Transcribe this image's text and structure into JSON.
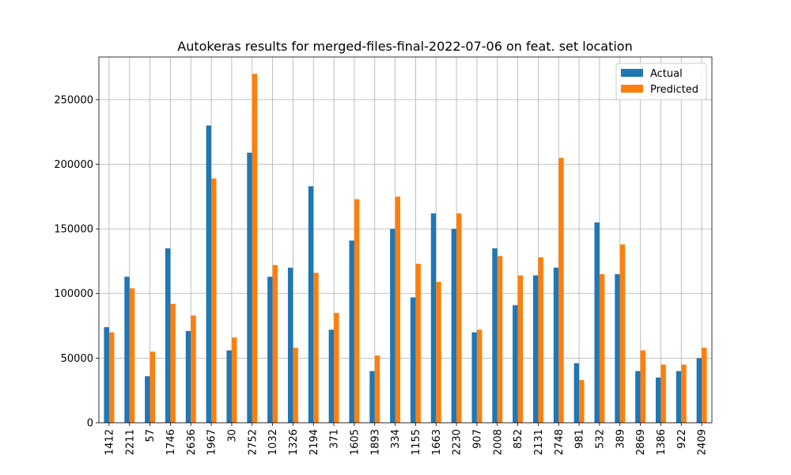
{
  "chart_data": {
    "type": "bar",
    "title": "Autokeras results for merged-files-final-2022-07-06 on feat. set location",
    "xlabel": "",
    "ylabel": "",
    "categories": [
      "1412",
      "2211",
      "57",
      "1746",
      "2636",
      "1967",
      "30",
      "2752",
      "1032",
      "1326",
      "2194",
      "371",
      "1605",
      "1893",
      "334",
      "1155",
      "1663",
      "2230",
      "907",
      "2008",
      "852",
      "2131",
      "2748",
      "981",
      "532",
      "389",
      "2869",
      "1386",
      "922",
      "2409"
    ],
    "series": [
      {
        "name": "Actual",
        "color": "#1f77b4",
        "values": [
          74000,
          113000,
          36000,
          135000,
          71000,
          230000,
          56000,
          209000,
          113000,
          120000,
          183000,
          72000,
          141000,
          40000,
          150000,
          97000,
          162000,
          150000,
          70000,
          135000,
          91000,
          114000,
          120000,
          46000,
          155000,
          115000,
          40000,
          35000,
          40000,
          50000
        ]
      },
      {
        "name": "Predicted",
        "color": "#ff7f0e",
        "values": [
          70000,
          104000,
          55000,
          92000,
          83000,
          189000,
          66000,
          270000,
          122000,
          58000,
          116000,
          85000,
          173000,
          52000,
          175000,
          123000,
          109000,
          162000,
          72000,
          129000,
          114000,
          128000,
          205000,
          33000,
          115000,
          138000,
          56000,
          45000,
          45000,
          58000
        ]
      }
    ],
    "ylim": [
      0,
      283000
    ],
    "yticks": [
      0,
      50000,
      100000,
      150000,
      200000,
      250000
    ],
    "ytick_labels": [
      "0",
      "50000",
      "100000",
      "150000",
      "200000",
      "250000"
    ],
    "grid": true,
    "legend_position": "top-right"
  }
}
